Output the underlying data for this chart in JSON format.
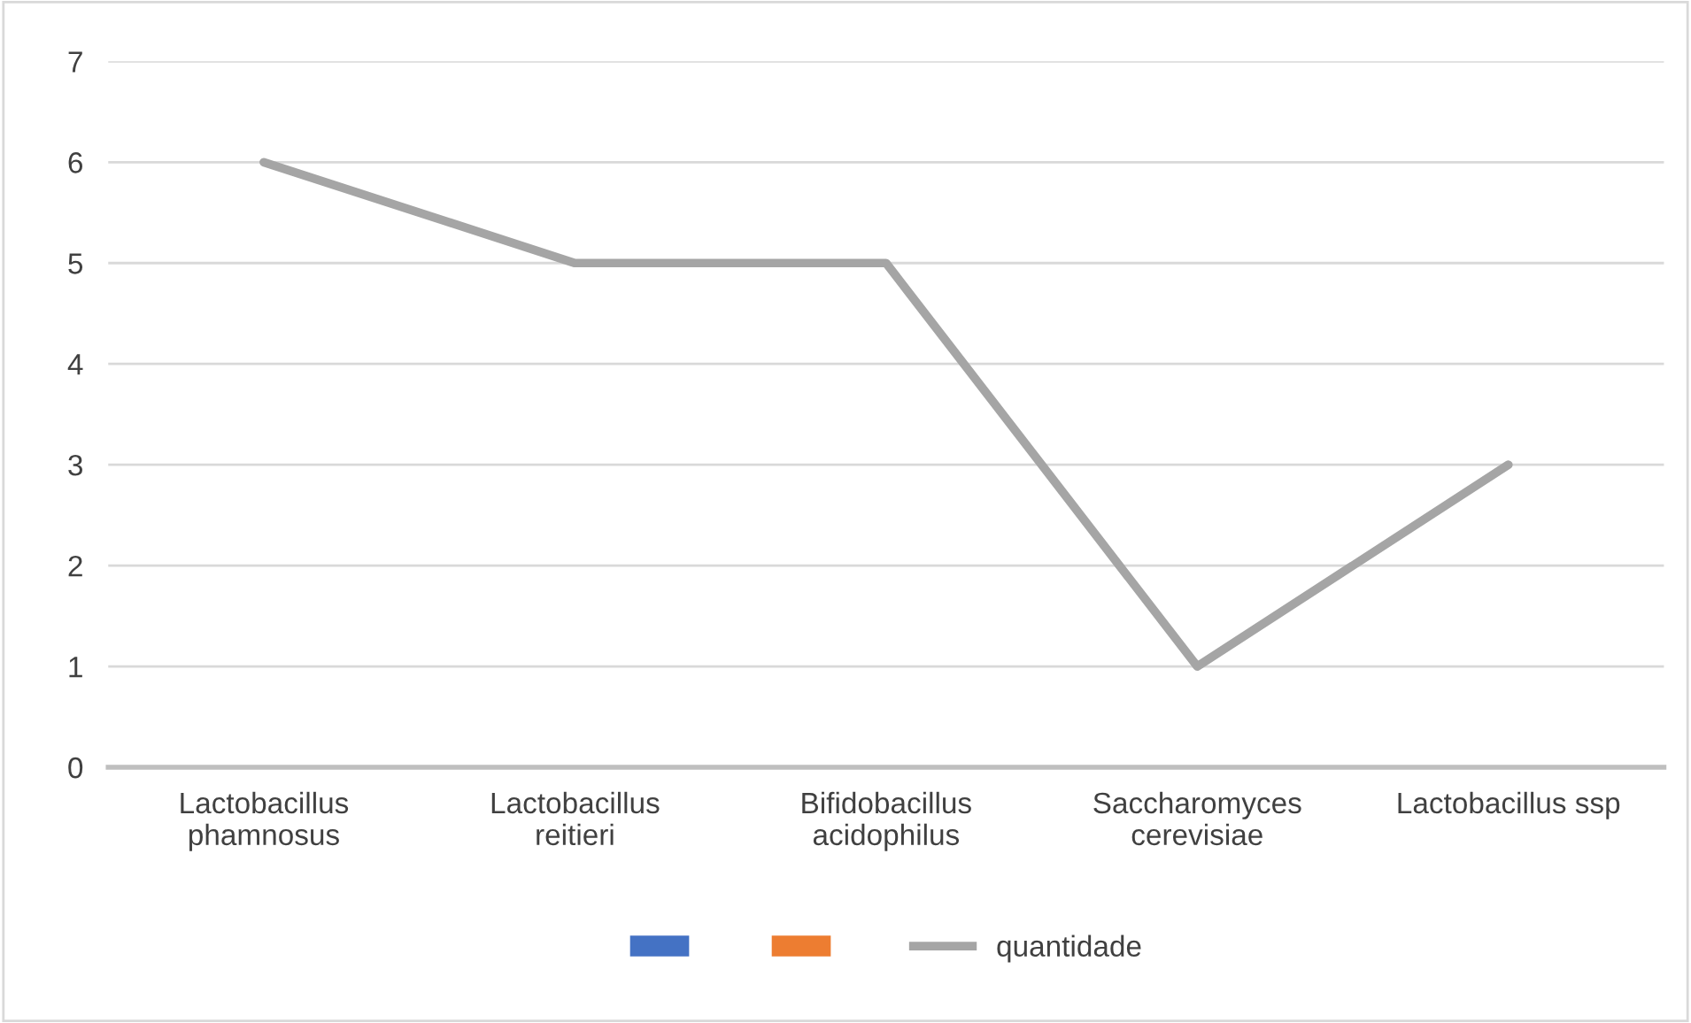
{
  "chart_data": {
    "type": "line",
    "categories": [
      "Lactobacillus\nphamnosus",
      "Lactobacillus\nreitieri",
      "Bifidobacillus\nacidophilus",
      "Saccharomyces\ncerevisiae",
      "Lactobacillus ssp"
    ],
    "series": [
      {
        "type": "bar",
        "color": "#4472c4",
        "values": [
          null,
          null,
          null,
          null,
          null
        ]
      },
      {
        "type": "bar",
        "color": "#ed7d31",
        "values": [
          null,
          null,
          null,
          null,
          null
        ]
      },
      {
        "name": "quantidade",
        "color": "#a5a5a5",
        "values": [
          6,
          5,
          5,
          1,
          3
        ]
      }
    ],
    "ylim": [
      0,
      7
    ],
    "yticks": [
      0,
      1,
      2,
      3,
      4,
      5,
      6,
      7
    ],
    "grid": "y",
    "legend": "bottom",
    "marker": "none",
    "line_style": "solid"
  }
}
